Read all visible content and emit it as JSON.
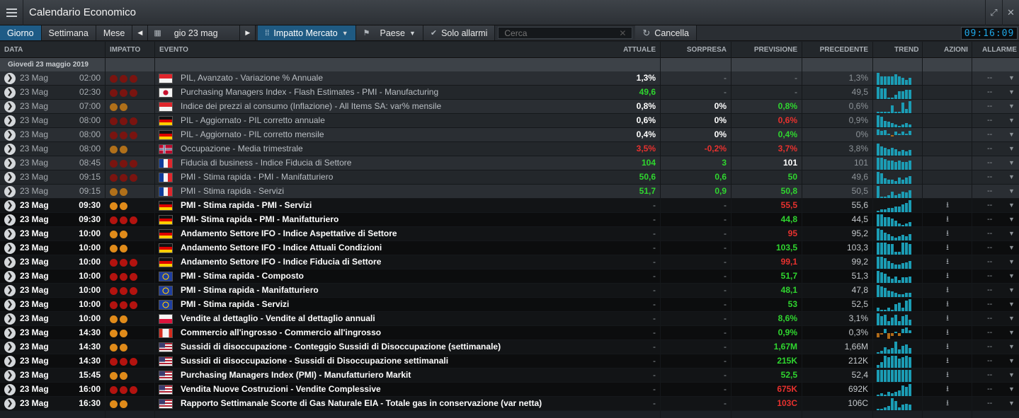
{
  "window": {
    "title": "Calendario Economico"
  },
  "toolbar": {
    "tab_day": "Giorno",
    "tab_week": "Settimana",
    "tab_month": "Mese",
    "date": "gio 23 mag",
    "impact": "Impatto Mercato",
    "country": "Paese",
    "alarms_only": "Solo allarmi",
    "search_placeholder": "Cerca",
    "clear": "Cancella",
    "clock": "09:16:09"
  },
  "columns": {
    "date": "DATA",
    "impact": "IMPATTO",
    "event": "EVENTO",
    "actual": "ATTUALE",
    "surprise": "SORPRESA",
    "forecast": "PREVISIONE",
    "previous": "PRECEDENTE",
    "trend": "TREND",
    "actions": "AZIONI",
    "alarm": "ALLARME"
  },
  "day_group": "Giovedì 23 maggio 2019",
  "colors": {
    "green": "#2fd62f",
    "red": "#e8312e",
    "white": "#ffffff",
    "accent": "#1e5b86"
  },
  "rows": [
    {
      "date": "23 Mag",
      "time": "02:00",
      "impact": 3,
      "flag": "SG",
      "event": "PIL, Avanzato - Variazione % Annuale",
      "actual": "1,3%",
      "actual_c": "white",
      "surprise": "-",
      "surprise_c": "dim",
      "forecast": "-",
      "forecast_c": "dim",
      "previous": "1,3%",
      "trend": [
        7,
        5,
        5,
        5,
        5,
        6,
        5,
        4,
        3,
        4
      ],
      "future": false
    },
    {
      "date": "23 Mag",
      "time": "02:30",
      "impact": 3,
      "flag": "JP",
      "event": "Purchasing Managers Index - Flash Estimates - PMI - Manufacturing",
      "actual": "49,6",
      "actual_c": "green",
      "surprise": "-",
      "surprise_c": "dim",
      "forecast": "-",
      "forecast_c": "dim",
      "previous": "49,5",
      "trend": [
        8,
        7,
        7,
        1,
        1,
        3,
        5,
        5,
        6,
        6
      ],
      "future": false
    },
    {
      "date": "23 Mag",
      "time": "07:00",
      "impact": 2,
      "flag": "SG",
      "event": "Indice dei prezzi al consumo (Inflazione) - All Items SA: var% mensile",
      "actual": "0,8%",
      "actual_c": "white",
      "surprise": "0%",
      "surprise_c": "white",
      "forecast": "0,8%",
      "forecast_c": "green",
      "previous": "0,6%",
      "trend": [
        1,
        1,
        1,
        1,
        6,
        1,
        1,
        8,
        3,
        9
      ],
      "future": false
    },
    {
      "date": "23 Mag",
      "time": "08:00",
      "impact": 3,
      "flag": "DE",
      "event": "PIL - Aggiornato - PIL corretto annuale",
      "actual": "0,6%",
      "actual_c": "white",
      "surprise": "0%",
      "surprise_c": "white",
      "forecast": "0,6%",
      "forecast_c": "red",
      "previous": "0,9%",
      "trend": [
        9,
        8,
        5,
        4,
        3,
        2,
        1,
        2,
        3,
        2
      ],
      "future": false
    },
    {
      "date": "23 Mag",
      "time": "08:00",
      "impact": 3,
      "flag": "DE",
      "event": "PIL - Aggiornato - PIL corretto mensile",
      "actual": "0,4%",
      "actual_c": "white",
      "surprise": "0%",
      "surprise_c": "white",
      "forecast": "0,4%",
      "forecast_c": "green",
      "previous": "0%",
      "trend": [
        7,
        5,
        6,
        2,
        -2,
        4,
        2,
        4,
        1,
        5
      ],
      "future": false
    },
    {
      "date": "23 Mag",
      "time": "08:00",
      "impact": 2,
      "flag": "NO",
      "event": "Occupazione - Media trimestrale",
      "actual": "3,5%",
      "actual_c": "red",
      "surprise": "-0,2%",
      "surprise_c": "red",
      "forecast": "3,7%",
      "forecast_c": "red",
      "previous": "3,8%",
      "trend": [
        9,
        7,
        6,
        5,
        6,
        5,
        3,
        4,
        3,
        4
      ],
      "future": false
    },
    {
      "date": "23 Mag",
      "time": "08:45",
      "impact": 3,
      "flag": "FR",
      "event": "Fiducia di business - Indice Fiducia di Settore",
      "actual": "104",
      "actual_c": "green",
      "surprise": "3",
      "surprise_c": "green",
      "forecast": "101",
      "forecast_c": "white",
      "previous": "101",
      "trend": [
        9,
        9,
        8,
        7,
        7,
        6,
        7,
        6,
        6,
        7
      ],
      "future": false
    },
    {
      "date": "23 Mag",
      "time": "09:15",
      "impact": 3,
      "flag": "FR",
      "event": "PMI - Stima rapida - PMI - Manifatturiero",
      "actual": "50,6",
      "actual_c": "green",
      "surprise": "0,6",
      "surprise_c": "green",
      "forecast": "50",
      "forecast_c": "green",
      "previous": "49,6",
      "trend": [
        9,
        8,
        4,
        3,
        3,
        2,
        5,
        3,
        5,
        6
      ],
      "future": false
    },
    {
      "date": "23 Mag",
      "time": "09:15",
      "impact": 2,
      "flag": "FR",
      "event": "PMI - Stima rapida - Servizi",
      "actual": "51,7",
      "actual_c": "green",
      "surprise": "0,9",
      "surprise_c": "green",
      "forecast": "50,8",
      "forecast_c": "green",
      "previous": "50,5",
      "trend": [
        9,
        1,
        1,
        2,
        5,
        2,
        3,
        5,
        4,
        6
      ],
      "future": false
    },
    {
      "date": "23 Mag",
      "time": "09:30",
      "impact": 2,
      "flag": "DE",
      "event": "PMI - Stima rapida - PMI - Servizi",
      "actual": "-",
      "actual_c": "dim",
      "surprise": "-",
      "surprise_c": "dim",
      "forecast": "55,5",
      "forecast_c": "red",
      "previous": "55,6",
      "trend": [
        1,
        2,
        2,
        3,
        3,
        4,
        4,
        6,
        7,
        9
      ],
      "future": true
    },
    {
      "date": "23 Mag",
      "time": "09:30",
      "impact": 3,
      "flag": "DE",
      "event": "PMI- Stima rapida - PMI - Manifatturiero",
      "actual": "-",
      "actual_c": "dim",
      "surprise": "-",
      "surprise_c": "dim",
      "forecast": "44,8",
      "forecast_c": "green",
      "previous": "44,5",
      "trend": [
        9,
        9,
        7,
        7,
        6,
        4,
        2,
        1,
        2,
        3
      ],
      "future": true
    },
    {
      "date": "23 Mag",
      "time": "10:00",
      "impact": 2,
      "flag": "DE",
      "event": "Andamento Settore IFO - Indice Aspettative di Settore",
      "actual": "-",
      "actual_c": "dim",
      "surprise": "-",
      "surprise_c": "dim",
      "forecast": "95",
      "forecast_c": "red",
      "previous": "95,2",
      "trend": [
        9,
        8,
        6,
        5,
        3,
        2,
        3,
        4,
        3,
        5
      ],
      "future": true
    },
    {
      "date": "23 Mag",
      "time": "10:00",
      "impact": 2,
      "flag": "DE",
      "event": "Andamento Settore IFO - Indice Attuali Condizioni",
      "actual": "-",
      "actual_c": "dim",
      "surprise": "-",
      "surprise_c": "dim",
      "forecast": "103,5",
      "forecast_c": "green",
      "previous": "103,3",
      "trend": [
        9,
        9,
        9,
        8,
        8,
        2,
        2,
        9,
        9,
        8
      ],
      "future": true
    },
    {
      "date": "23 Mag",
      "time": "10:00",
      "impact": 3,
      "flag": "DE",
      "event": "Andamento Settore IFO - Indice Fiducia di Settore",
      "actual": "-",
      "actual_c": "dim",
      "surprise": "-",
      "surprise_c": "dim",
      "forecast": "99,1",
      "forecast_c": "red",
      "previous": "99,2",
      "trend": [
        9,
        9,
        8,
        6,
        4,
        3,
        3,
        4,
        5,
        6
      ],
      "future": true
    },
    {
      "date": "23 Mag",
      "time": "10:00",
      "impact": 3,
      "flag": "EU",
      "event": "PMI - Stima rapida - Composto",
      "actual": "-",
      "actual_c": "dim",
      "surprise": "-",
      "surprise_c": "dim",
      "forecast": "51,7",
      "forecast_c": "green",
      "previous": "51,3",
      "trend": [
        9,
        8,
        7,
        5,
        3,
        5,
        2,
        4,
        4,
        5
      ],
      "future": true
    },
    {
      "date": "23 Mag",
      "time": "10:00",
      "impact": 3,
      "flag": "EU",
      "event": "PMI - Stima rapida - Manifatturiero",
      "actual": "-",
      "actual_c": "dim",
      "surprise": "-",
      "surprise_c": "dim",
      "forecast": "48,1",
      "forecast_c": "green",
      "previous": "47,8",
      "trend": [
        9,
        8,
        7,
        5,
        4,
        3,
        2,
        2,
        3,
        3
      ],
      "future": true
    },
    {
      "date": "23 Mag",
      "time": "10:00",
      "impact": 3,
      "flag": "EU",
      "event": "PMI - Stima rapida - Servizi",
      "actual": "-",
      "actual_c": "dim",
      "surprise": "-",
      "surprise_c": "dim",
      "forecast": "53",
      "forecast_c": "green",
      "previous": "52,5",
      "trend": [
        2,
        1,
        1,
        2,
        1,
        4,
        5,
        2,
        6,
        7
      ],
      "future": true
    },
    {
      "date": "23 Mag",
      "time": "10:00",
      "impact": 2,
      "flag": "PL",
      "event": "Vendite al dettaglio - Vendite al dettaglio annuali",
      "actual": "-",
      "actual_c": "dim",
      "surprise": "-",
      "surprise_c": "dim",
      "forecast": "8,6%",
      "forecast_c": "green",
      "previous": "3,1%",
      "trend": [
        9,
        7,
        8,
        3,
        6,
        8,
        3,
        7,
        8,
        4
      ],
      "future": true
    },
    {
      "date": "23 Mag",
      "time": "14:30",
      "impact": 2,
      "flag": "CA",
      "event": "Commercio all'ingrosso - Commercio all'ingrosso",
      "actual": "-",
      "actual_c": "dim",
      "surprise": "-",
      "surprise_c": "dim",
      "forecast": "0,9%",
      "forecast_c": "green",
      "previous": "0,3%",
      "trend": [
        -3,
        -1,
        3,
        -4,
        -2,
        1,
        -2,
        3,
        4,
        2
      ],
      "future": true
    },
    {
      "date": "23 Mag",
      "time": "14:30",
      "impact": 2,
      "flag": "US",
      "event": "Sussidi di disoccupazione - Conteggio Sussidi di Disoccupazione (settimanale)",
      "actual": "-",
      "actual_c": "dim",
      "surprise": "-",
      "surprise_c": "dim",
      "forecast": "1,67M",
      "forecast_c": "green",
      "previous": "1,66M",
      "trend": [
        1,
        2,
        5,
        3,
        4,
        9,
        3,
        6,
        7,
        4
      ],
      "future": true
    },
    {
      "date": "23 Mag",
      "time": "14:30",
      "impact": 3,
      "flag": "US",
      "event": "Sussidi di disoccupazione - Sussidi di Disoccupazione settimanali",
      "actual": "-",
      "actual_c": "dim",
      "surprise": "-",
      "surprise_c": "dim",
      "forecast": "215K",
      "forecast_c": "green",
      "previous": "212K",
      "trend": [
        2,
        4,
        9,
        8,
        9,
        9,
        7,
        8,
        9,
        8
      ],
      "future": true
    },
    {
      "date": "23 Mag",
      "time": "15:45",
      "impact": 2,
      "flag": "US",
      "event": "Purchasing Managers Index (PMI) - Manufatturiero Markit",
      "actual": "-",
      "actual_c": "dim",
      "surprise": "-",
      "surprise_c": "dim",
      "forecast": "52,5",
      "forecast_c": "green",
      "previous": "52,4",
      "trend": [
        1,
        1,
        1,
        1,
        1,
        1,
        1,
        1,
        1,
        1
      ],
      "future": true
    },
    {
      "date": "23 Mag",
      "time": "16:00",
      "impact": 3,
      "flag": "US",
      "event": "Vendita Nuove Costruzioni - Vendite Complessive",
      "actual": "-",
      "actual_c": "dim",
      "surprise": "-",
      "surprise_c": "dim",
      "forecast": "675K",
      "forecast_c": "red",
      "previous": "692K",
      "trend": [
        1,
        2,
        1,
        3,
        2,
        3,
        4,
        7,
        6,
        8
      ],
      "future": true
    },
    {
      "date": "23 Mag",
      "time": "16:30",
      "impact": 2,
      "flag": "US",
      "event": "Rapporto Settimanale Scorte di Gas Naturale EIA - Totale gas in conservazione (var netta)",
      "actual": "-",
      "actual_c": "dim",
      "surprise": "-",
      "surprise_c": "dim",
      "forecast": "103C",
      "forecast_c": "red",
      "previous": "106C",
      "trend": [
        1,
        1,
        2,
        3,
        9,
        7,
        2,
        4,
        5,
        4
      ],
      "future": true
    }
  ]
}
